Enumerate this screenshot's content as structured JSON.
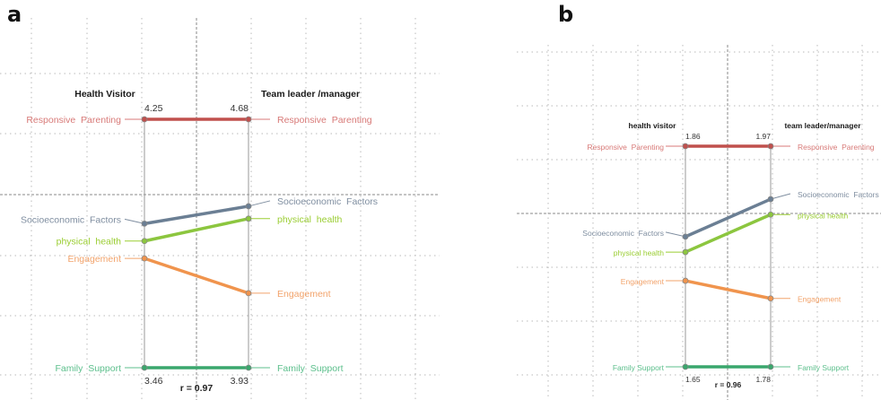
{
  "chart_data": [
    {
      "type": "line",
      "panel": "a",
      "title": "",
      "left_axis_label": "Health Visitor",
      "right_axis_label": "Team leader /manager",
      "top_values": {
        "left": "4.25",
        "right": "4.68"
      },
      "bottom_values": {
        "left": "3.46",
        "right": "3.93"
      },
      "correlation_label": "r = 0.97",
      "series": [
        {
          "name": "Responsive Parenting",
          "left_rank_value": 4.25,
          "right_rank_value": 4.68,
          "left_pos": 0.0,
          "right_pos": 0.0,
          "color": "#c0504d"
        },
        {
          "name": "Socioeconomic Factors",
          "left_pos": 0.42,
          "right_pos": 0.35,
          "color": "#6b7f94"
        },
        {
          "name": "physical health",
          "left_pos": 0.49,
          "right_pos": 0.4,
          "color": "#8cc63f"
        },
        {
          "name": "Engagement",
          "left_pos": 0.56,
          "right_pos": 0.7,
          "color": "#f0944d"
        },
        {
          "name": "Family Support",
          "left_rank_value": 3.46,
          "right_rank_value": 3.93,
          "left_pos": 1.0,
          "right_pos": 1.0,
          "color": "#3aa76d"
        }
      ],
      "labels": {
        "left": [
          "Responsive  Parenting",
          "Socioeconomic  Factors",
          "physical  health",
          "Engagement",
          "Family  Support"
        ],
        "right": [
          "Responsive  Parenting",
          "Socioeconomic  Factors",
          "physical  health",
          "Engagement",
          "Family  Support"
        ]
      },
      "grid": true
    },
    {
      "type": "line",
      "panel": "b",
      "title": "",
      "left_axis_label": "health visitor",
      "right_axis_label": "team leader/manager",
      "top_values": {
        "left": "1.86",
        "right": "1.97"
      },
      "bottom_values": {
        "left": "1.65",
        "right": "1.78"
      },
      "correlation_label": "r = 0.96",
      "series": [
        {
          "name": "Responsive Parenting",
          "left_rank_value": 1.86,
          "right_rank_value": 1.97,
          "left_pos": 0.0,
          "right_pos": 0.0,
          "color": "#c0504d"
        },
        {
          "name": "Socioeconomic Factors",
          "left_pos": 0.41,
          "right_pos": 0.24,
          "color": "#6b7f94"
        },
        {
          "name": "physical health",
          "left_pos": 0.48,
          "right_pos": 0.31,
          "color": "#8cc63f"
        },
        {
          "name": "Engagement",
          "left_pos": 0.61,
          "right_pos": 0.69,
          "color": "#f0944d"
        },
        {
          "name": "Family Support",
          "left_rank_value": 1.65,
          "right_rank_value": 1.78,
          "left_pos": 1.0,
          "right_pos": 1.0,
          "color": "#3aa76d"
        }
      ],
      "labels": {
        "left": [
          "Responsive  Parenting",
          "Socioeconomic  Factors",
          "physical health",
          "Engagement",
          "Family Support"
        ],
        "right": [
          "Responsive  Parenting",
          "Socioeconomic  Factors",
          "physical health",
          "Engagement",
          "Family Support"
        ]
      },
      "grid": true
    }
  ],
  "panels": {
    "a": {
      "letter": "a"
    },
    "b": {
      "letter": "b"
    }
  },
  "label_colors": {
    "Responsive Parenting": "#d87a78",
    "Socioeconomic Factors": "#7f8ea0",
    "physical health": "#9acd32",
    "Engagement": "#f2a36b",
    "Family Support": "#5cbf8c"
  }
}
